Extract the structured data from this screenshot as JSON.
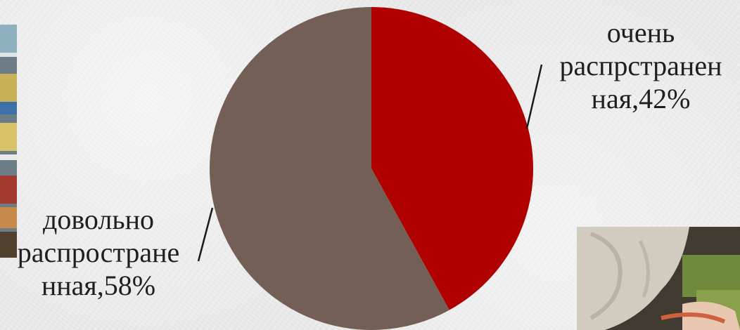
{
  "chart_data": {
    "type": "pie",
    "title": "",
    "slices": [
      {
        "label_lines": [
          "очень",
          "распрстранен",
          "ная,42%"
        ],
        "value": 42,
        "color": "#b00000"
      },
      {
        "label_lines": [
          "довольно",
          "распростране",
          "нная,58%"
        ],
        "value": 58,
        "color": "#735f55"
      }
    ],
    "start_angle_deg": 0,
    "direction": "clockwise",
    "legend": "none",
    "labels_placement": "outside with leader lines"
  },
  "background": {
    "shelf_photo": "store-shelf-photo",
    "hand_photo": "shopping-basket-photo"
  }
}
